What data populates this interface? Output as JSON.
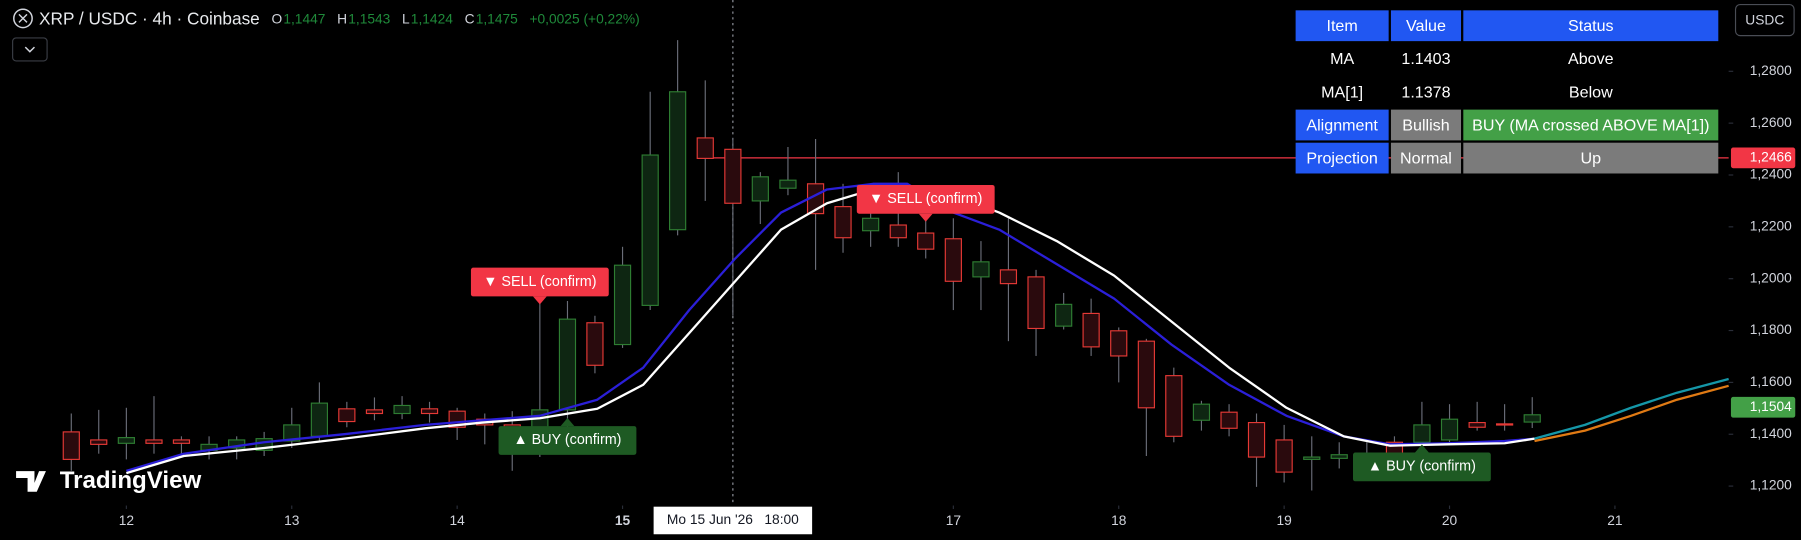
{
  "header": {
    "symbol": "XRP / USDC · 4h · Coinbase",
    "ohlc": [
      {
        "key": "O",
        "value": "1,1447"
      },
      {
        "key": "H",
        "value": "1,1543"
      },
      {
        "key": "L",
        "value": "1,1424"
      },
      {
        "key": "C",
        "value": "1,1475"
      }
    ],
    "change": "+0,0025 (+0,22%)"
  },
  "currency": "USDC",
  "logo": "TradingView",
  "table": {
    "columns": [
      "Item",
      "Value",
      "Status"
    ],
    "rows": [
      [
        "MA",
        "1.1403",
        "Above"
      ],
      [
        "MA[1]",
        "1.1378",
        "Below"
      ],
      [
        "Alignment",
        "Bullish",
        "BUY (MA crossed ABOVE MA[1])"
      ],
      [
        "Projection",
        "Normal",
        "Up"
      ]
    ]
  },
  "chart_data": {
    "type": "candlestick",
    "up_color": "#2e7d32",
    "up_fill": "#0e2612",
    "down_color": "#e53935",
    "down_fill": "#2a0a0d",
    "wick_color": "#6a6d78",
    "xlim": [
      11.236,
      21.6875
    ],
    "ylim": [
      1.1125,
      1.3075
    ],
    "grid": false,
    "xticks": [
      12,
      13,
      14,
      15,
      17,
      18,
      19,
      20,
      21
    ],
    "yticks": [
      {
        "value": 1.28,
        "label": "1,2800"
      },
      {
        "value": 1.26,
        "label": "1,2600"
      },
      {
        "value": 1.24,
        "label": "1,2400"
      },
      {
        "value": 1.22,
        "label": "1,2200"
      },
      {
        "value": 1.2,
        "label": "1,2000"
      },
      {
        "value": 1.18,
        "label": "1,1800"
      },
      {
        "value": 1.16,
        "label": "1,1600"
      },
      {
        "value": 1.14,
        "label": "1,1400"
      },
      {
        "value": 1.12,
        "label": "1,1200"
      }
    ],
    "x": [
      11.667,
      11.833,
      12,
      12.167,
      12.333,
      12.5,
      12.667,
      12.833,
      13,
      13.167,
      13.333,
      13.5,
      13.667,
      13.833,
      14,
      14.167,
      14.333,
      14.5,
      14.667,
      14.833,
      15,
      15.167,
      15.333,
      15.5,
      15.667,
      15.833,
      16,
      16.167,
      16.333,
      16.5,
      16.667,
      16.833,
      17,
      17.167,
      17.333,
      17.5,
      17.667,
      17.833,
      18,
      18.167,
      18.333,
      18.5,
      18.667,
      18.833,
      19,
      19.167,
      19.333,
      19.5,
      19.667,
      19.833,
      20,
      20.167,
      20.333,
      20.5
    ],
    "open": [
      1.1409,
      1.1378,
      1.1365,
      1.1378,
      1.1378,
      1.1338,
      1.1347,
      1.1338,
      1.1374,
      1.1392,
      1.1498,
      1.1494,
      1.148,
      1.1498,
      1.1489,
      1.1458,
      1.1436,
      1.1392,
      1.1494,
      1.183,
      1.1746,
      1.1897,
      1.2189,
      1.2543,
      1.2499,
      1.23,
      1.2349,
      1.2366,
      1.2278,
      1.2185,
      1.2207,
      1.2176,
      1.2154,
      1.2007,
      1.2034,
      1.2007,
      1.1817,
      1.1866,
      1.1799,
      1.1759,
      1.1626,
      1.1454,
      1.1485,
      1.1445,
      1.1378,
      1.1303,
      1.1307,
      1.1321,
      1.1369,
      1.1369,
      1.1378,
      1.1445,
      1.144,
      1.1447
    ],
    "high": [
      1.148,
      1.1494,
      1.1502,
      1.1547,
      1.1392,
      1.1392,
      1.1392,
      1.1409,
      1.1502,
      1.16,
      1.1525,
      1.1542,
      1.1547,
      1.1525,
      1.1502,
      1.148,
      1.1489,
      1.1914,
      1.1914,
      1.1857,
      1.2123,
      1.2721,
      1.292,
      1.2765,
      1.2543,
      1.2411,
      1.2508,
      1.2539,
      1.2366,
      1.2344,
      1.2411,
      1.2233,
      1.2233,
      1.2145,
      1.2233,
      1.2034,
      1.1945,
      1.1923,
      1.1812,
      1.1768,
      1.1657,
      1.1529,
      1.1516,
      1.148,
      1.1436,
      1.1392,
      1.1369,
      1.1369,
      1.1392,
      1.1525,
      1.1516,
      1.1525,
      1.1516,
      1.1543
    ],
    "low": [
      1.1259,
      1.1325,
      1.1303,
      1.1325,
      1.1325,
      1.1303,
      1.1303,
      1.1316,
      1.1347,
      1.1369,
      1.1427,
      1.1454,
      1.1458,
      1.1445,
      1.1378,
      1.1361,
      1.1259,
      1.1312,
      1.1427,
      1.1635,
      1.1733,
      1.1879,
      1.2167,
      1.23,
      1.1857,
      1.2211,
      1.2322,
      1.2034,
      1.21,
      1.2123,
      1.2123,
      1.2078,
      1.1879,
      1.1879,
      1.1759,
      1.1702,
      1.1804,
      1.1702,
      1.16,
      1.1316,
      1.1369,
      1.1414,
      1.1392,
      1.1197,
      1.1214,
      1.1183,
      1.1268,
      1.1254,
      1.1281,
      1.1325,
      1.1369,
      1.1414,
      1.1414,
      1.1424
    ],
    "close": [
      1.1303,
      1.1361,
      1.1387,
      1.1365,
      1.1365,
      1.1361,
      1.1378,
      1.1383,
      1.1436,
      1.152,
      1.1449,
      1.148,
      1.1511,
      1.148,
      1.1427,
      1.1436,
      1.1334,
      1.1494,
      1.1844,
      1.1666,
      1.2052,
      1.2477,
      1.2721,
      1.2464,
      1.2291,
      1.2393,
      1.238,
      1.2251,
      1.2158,
      1.2233,
      1.2158,
      1.2114,
      1.199,
      1.2065,
      1.1981,
      1.1808,
      1.1901,
      1.1737,
      1.1702,
      1.1502,
      1.1392,
      1.1516,
      1.1423,
      1.1312,
      1.1254,
      1.1312,
      1.1321,
      1.1312,
      1.1325,
      1.1436,
      1.1458,
      1.1427,
      1.1436,
      1.1475
    ],
    "lines": [
      {
        "color": "#2b1fd8",
        "x": [
          12,
          12.347,
          12.833,
          13.319,
          13.806,
          14.153,
          14.5,
          14.847,
          15.125,
          15.403,
          15.681,
          15.958,
          16.236,
          16.514,
          16.722,
          17,
          17.278,
          17.625,
          17.972,
          18.319,
          18.667,
          19.014,
          19.361,
          19.639,
          19.986,
          20.333,
          20.514
        ],
        "values": [
          1.1259,
          1.1325,
          1.1369,
          1.14,
          1.1436,
          1.1454,
          1.1471,
          1.1533,
          1.1657,
          1.1879,
          1.2078,
          1.2255,
          1.2344,
          1.2366,
          1.2366,
          1.2255,
          1.2189,
          1.2056,
          1.1923,
          1.1746,
          1.1591,
          1.1471,
          1.1392,
          1.1361,
          1.1365,
          1.1374,
          1.1383
        ]
      },
      {
        "color": "#ffffff",
        "x": [
          12,
          12.347,
          12.833,
          13.319,
          13.806,
          14.153,
          14.5,
          14.847,
          15.125,
          15.403,
          15.681,
          15.958,
          16.236,
          16.514,
          16.722,
          17,
          17.278,
          17.625,
          17.972,
          18.319,
          18.667,
          19.014,
          19.361,
          19.639,
          19.986,
          20.333,
          20.514
        ],
        "values": [
          1.125,
          1.1316,
          1.1347,
          1.1383,
          1.1423,
          1.1445,
          1.1462,
          1.1498,
          1.1591,
          1.179,
          1.199,
          1.2189,
          1.2291,
          1.2344,
          1.2357,
          1.2322,
          1.2255,
          1.2145,
          1.2012,
          1.1835,
          1.1657,
          1.1502,
          1.1392,
          1.1356,
          1.1361,
          1.1365,
          1.1383
        ]
      },
      {
        "color": "#1597a8",
        "x": [
          20.514,
          20.819,
          21.097,
          21.375,
          21.6875
        ],
        "values": [
          1.1383,
          1.1436,
          1.1502,
          1.156,
          1.1613
        ]
      },
      {
        "color": "#e07a14",
        "x": [
          20.514,
          20.819,
          21.097,
          21.375,
          21.6875
        ],
        "values": [
          1.1374,
          1.1414,
          1.1471,
          1.1533,
          1.1587
        ]
      }
    ],
    "price_lines": [
      {
        "value": 1.2466,
        "label": "1,2466",
        "color": "#f23645",
        "from_x": 15.542
      },
      {
        "value": 1.1504,
        "label": "1,1504",
        "color": "#43a047"
      }
    ],
    "signals": [
      {
        "kind": "sell",
        "x": 14.5,
        "label": "▼ SELL (confirm)",
        "color": "#f23645"
      },
      {
        "kind": "buy",
        "x": 14.667,
        "label": "▲ BUY (confirm)",
        "color": "#1e5a23"
      },
      {
        "kind": "sell",
        "x": 16.833,
        "label": "▼ SELL (confirm)",
        "color": "#f23645"
      },
      {
        "kind": "buy",
        "x": 19.833,
        "label": "▲ BUY (confirm)",
        "color": "#1e5a23"
      }
    ],
    "crosshair": {
      "x": 15.667,
      "label": "Mo 15 Jun '26   18:00"
    }
  }
}
